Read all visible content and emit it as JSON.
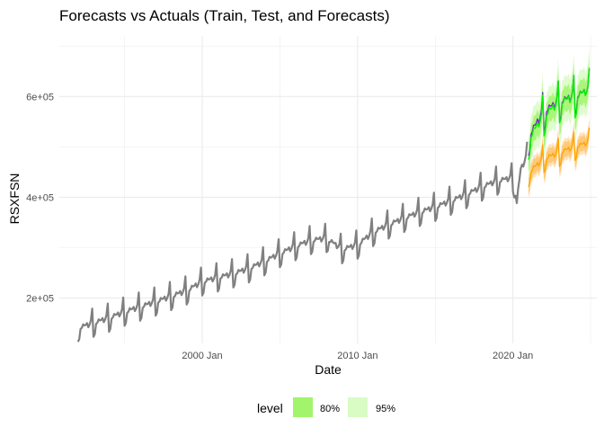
{
  "chart_data": {
    "type": "line",
    "title": "Forecasts vs Actuals (Train, Test, and Forecasts)",
    "xlabel": "Date",
    "ylabel": "RSXFSN",
    "x_ticks": [
      "2000 Jan",
      "2010 Jan",
      "2020 Jan"
    ],
    "x_tick_years": [
      2000,
      2010,
      2020
    ],
    "y_ticks": [
      "2e+05",
      "4e+05",
      "6e+05"
    ],
    "y_tick_values": [
      200000,
      400000,
      600000
    ],
    "xlim": [
      1990.8,
      2025.4
    ],
    "ylim": [
      110000,
      720000
    ],
    "grid": true,
    "legend": {
      "position": "bottom",
      "title": "level",
      "items": [
        {
          "label": "80%",
          "color": "#a1f46c"
        },
        {
          "label": "95%",
          "color": "#d9fbc4"
        }
      ]
    },
    "series": [
      {
        "role": "train",
        "color": "#808080",
        "x": [
          1992.0,
          1993.0,
          1994.0,
          1995.0,
          1996.0,
          1997.0,
          1998.0,
          1999.0,
          2000.0,
          2001.0,
          2002.0,
          2003.0,
          2004.0,
          2005.0,
          2006.0,
          2007.0,
          2008.0,
          2009.0,
          2010.0,
          2011.0,
          2012.0,
          2013.0,
          2014.0,
          2015.0,
          2016.0,
          2017.0,
          2018.0,
          2019.0,
          2020.0,
          2020.25,
          2020.5,
          2020.9
        ],
        "y": [
          140000,
          150000,
          160000,
          172000,
          182000,
          192000,
          203000,
          214000,
          232000,
          240000,
          248000,
          258000,
          272000,
          288000,
          302000,
          314000,
          318000,
          296000,
          305000,
          330000,
          345000,
          358000,
          370000,
          380000,
          392000,
          405000,
          420000,
          432000,
          438000,
          390000,
          455000,
          480000
        ],
        "seasonal_amplitude": 30000
      },
      {
        "role": "test-actual",
        "color": "#8b1ed6",
        "x": [
          2021.0,
          2022.0,
          2023.0,
          2024.0,
          2024.9
        ],
        "y": [
          520000,
          570000,
          590000,
          600000,
          612000
        ],
        "seasonal_amplitude": 42000
      },
      {
        "role": "forecast",
        "color": "#00f000",
        "x": [
          2021.0,
          2022.0,
          2023.0,
          2024.0,
          2024.9
        ],
        "y": [
          515000,
          562000,
          588000,
          598000,
          612000
        ],
        "seasonal_amplitude": 45000,
        "band_80": 25000,
        "band_95": 45000
      },
      {
        "role": "forecast-alt",
        "color": "#ffa500",
        "x": [
          2021.0,
          2022.0,
          2023.0,
          2024.0,
          2024.9
        ],
        "y": [
          448000,
          476000,
          488000,
          500000,
          508000
        ],
        "seasonal_amplitude": 30000,
        "band_80": 15000,
        "band_95": 22000
      }
    ]
  }
}
